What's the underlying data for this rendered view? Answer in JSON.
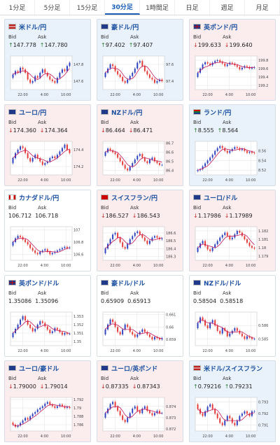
{
  "tabs": [
    {
      "label": "1分足",
      "active": false
    },
    {
      "label": "5分足",
      "active": false
    },
    {
      "label": "15分足",
      "active": false
    },
    {
      "label": "30分足",
      "active": true
    },
    {
      "label": "1時間足",
      "active": false
    },
    {
      "label": "日足",
      "active": false
    },
    {
      "label": "週足",
      "active": false
    },
    {
      "label": "月足",
      "active": false
    }
  ],
  "labels": {
    "bid": "Bid",
    "ask": "Ask"
  },
  "colors": {
    "up_candle": "#2b3fbf",
    "down_candle": "#e53935",
    "ma_line": "#c2185b",
    "grid": "#e0e0e0"
  },
  "cards": [
    {
      "pair": "米ドル/円",
      "flag": "us",
      "trend": "up",
      "bid": "147.778",
      "ask": "147.780",
      "xticks": [
        "22:00",
        "4:00",
        "10:00"
      ],
      "yticks": [
        "147.8",
        "147.6"
      ],
      "chart_data": {
        "type": "candlestick",
        "series": [
          147.68,
          147.72,
          147.7,
          147.76,
          147.74,
          147.7,
          147.62,
          147.58,
          147.6,
          147.66,
          147.64,
          147.7,
          147.74,
          147.7,
          147.66,
          147.62,
          147.6,
          147.58,
          147.64,
          147.7,
          147.74,
          147.72,
          147.78,
          147.82
        ],
        "ylim": [
          147.5,
          147.9
        ]
      }
    },
    {
      "pair": "豪ドル/円",
      "flag": "au",
      "trend": "up",
      "bid": "97.402",
      "ask": "97.407",
      "xticks": [
        "22:00",
        "4:00",
        "10:00"
      ],
      "yticks": [
        "97.6",
        "97.4"
      ],
      "chart_data": {
        "type": "candlestick",
        "series": [
          97.5,
          97.55,
          97.6,
          97.58,
          97.52,
          97.48,
          97.45,
          97.4,
          97.38,
          97.42,
          97.46,
          97.5,
          97.55,
          97.62,
          97.64,
          97.58,
          97.52,
          97.48,
          97.44,
          97.42,
          97.38,
          97.4,
          97.42,
          97.4
        ],
        "ylim": [
          97.3,
          97.7
        ]
      }
    },
    {
      "pair": "英ポンド/円",
      "flag": "gb",
      "trend": "down",
      "bid": "199.633",
      "ask": "199.640",
      "xticks": [
        "22:00",
        "4:00",
        "10:00"
      ],
      "yticks": [
        "199.8",
        "199.6",
        "199.4",
        "199.2"
      ],
      "chart_data": {
        "type": "candlestick",
        "series": [
          199.5,
          199.6,
          199.7,
          199.75,
          199.72,
          199.68,
          199.74,
          199.78,
          199.8,
          199.76,
          199.72,
          199.66,
          199.7,
          199.74,
          199.72,
          199.68,
          199.64,
          199.58,
          199.62,
          199.66,
          199.64,
          199.6,
          199.62,
          199.63
        ],
        "ylim": [
          199.1,
          199.9
        ]
      }
    },
    {
      "pair": "ユーロ/円",
      "flag": "eu",
      "trend": "down",
      "bid": "174.360",
      "ask": "174.364",
      "xticks": [
        "22:00",
        "4:00",
        "10:00"
      ],
      "yticks": [
        "174.4",
        "174.2"
      ],
      "chart_data": {
        "type": "candlestick",
        "series": [
          174.3,
          174.36,
          174.4,
          174.44,
          174.42,
          174.36,
          174.3,
          174.26,
          174.3,
          174.34,
          174.3,
          174.26,
          174.22,
          174.24,
          174.26,
          174.3,
          174.32,
          174.3,
          174.34,
          174.38,
          174.42,
          174.46,
          174.4,
          174.36
        ],
        "ylim": [
          174.1,
          174.5
        ]
      }
    },
    {
      "pair": "NZドル/円",
      "flag": "nz",
      "trend": "down",
      "bid": "86.464",
      "ask": "86.471",
      "xticks": [
        "22:00",
        "4:00",
        "10:00"
      ],
      "yticks": [
        "86.7",
        "86.6",
        "86.5",
        "86.4"
      ],
      "chart_data": {
        "type": "candlestick",
        "series": [
          86.6,
          86.64,
          86.62,
          86.6,
          86.58,
          86.54,
          86.5,
          86.46,
          86.42,
          86.4,
          86.44,
          86.48,
          86.52,
          86.56,
          86.58,
          86.54,
          86.5,
          86.48,
          86.52,
          86.54,
          86.5,
          86.48,
          86.46,
          86.46
        ],
        "ylim": [
          86.35,
          86.72
        ]
      }
    },
    {
      "pair": "ランド/円",
      "flag": "za",
      "trend": "up",
      "bid": "8.555",
      "ask": "8.564",
      "xticks": [
        "22:00",
        "4:00",
        "10:00"
      ],
      "yticks": [
        "8.56",
        "8.54",
        "8.52"
      ],
      "chart_data": {
        "type": "candlestick",
        "series": [
          8.52,
          8.522,
          8.528,
          8.534,
          8.54,
          8.546,
          8.552,
          8.56,
          8.566,
          8.57,
          8.566,
          8.56,
          8.556,
          8.56,
          8.564,
          8.568,
          8.566,
          8.562,
          8.564,
          8.56,
          8.556,
          8.558,
          8.556,
          8.555
        ],
        "ylim": [
          8.51,
          8.58
        ]
      }
    },
    {
      "pair": "カナダドル/円",
      "flag": "ca",
      "trend": "flat",
      "bid": "106.712",
      "ask": "106.718",
      "xticks": [
        "22:00",
        "4:00",
        "10:00"
      ],
      "yticks": [
        "107",
        "106.8",
        "106.6"
      ],
      "chart_data": {
        "type": "candlestick",
        "series": [
          106.8,
          106.86,
          106.9,
          106.88,
          106.84,
          106.8,
          106.76,
          106.7,
          106.66,
          106.62,
          106.6,
          106.64,
          106.66,
          106.68,
          106.64,
          106.6,
          106.62,
          106.64,
          106.66,
          106.68,
          106.7,
          106.72,
          106.7,
          106.71
        ],
        "ylim": [
          106.5,
          107.05
        ]
      }
    },
    {
      "pair": "スイスフラン/円",
      "flag": "ch",
      "trend": "down",
      "bid": "186.527",
      "ask": "186.543",
      "xticks": [
        "22:00",
        "4:00",
        "10:00"
      ],
      "yticks": [
        "186.6",
        "186.5",
        "186.4",
        "186.3"
      ],
      "chart_data": {
        "type": "candlestick",
        "series": [
          186.4,
          186.46,
          186.52,
          186.58,
          186.6,
          186.54,
          186.48,
          186.42,
          186.4,
          186.46,
          186.52,
          186.56,
          186.6,
          186.62,
          186.58,
          186.54,
          186.5,
          186.46,
          186.5,
          186.54,
          186.56,
          186.54,
          186.52,
          186.53
        ],
        "ylim": [
          186.25,
          186.68
        ]
      }
    },
    {
      "pair": "ユーロ/ドル",
      "flag": "eu",
      "trend": "down",
      "bid": "1.17986",
      "ask": "1.17989",
      "xticks": [
        "22:00",
        "4:00",
        "10:00"
      ],
      "yticks": [
        "1.182",
        "1.181",
        "1.18",
        "1.179"
      ],
      "chart_data": {
        "type": "candlestick",
        "series": [
          1.18,
          1.1805,
          1.1808,
          1.1802,
          1.1798,
          1.1796,
          1.18,
          1.1804,
          1.1808,
          1.1812,
          1.1815,
          1.1818,
          1.1814,
          1.181,
          1.1812,
          1.1816,
          1.182,
          1.1818,
          1.1814,
          1.181,
          1.1806,
          1.1802,
          1.18,
          1.1799
        ],
        "ylim": [
          1.1785,
          1.1825
        ]
      }
    },
    {
      "pair": "英ポンド/ドル",
      "flag": "gb",
      "trend": "flat",
      "bid": "1.35086",
      "ask": "1.35096",
      "xticks": [
        "22:00",
        "4:00",
        "10:00"
      ],
      "yticks": [
        "1.353",
        "1.352",
        "1.351",
        "1.35"
      ],
      "chart_data": {
        "type": "candlestick",
        "series": [
          1.351,
          1.3515,
          1.352,
          1.3526,
          1.353,
          1.3525,
          1.352,
          1.3516,
          1.3512,
          1.3515,
          1.352,
          1.3524,
          1.3522,
          1.3518,
          1.3514,
          1.351,
          1.3512,
          1.3516,
          1.3514,
          1.3511,
          1.3508,
          1.351,
          1.3509,
          1.3509
        ],
        "ylim": [
          1.3495,
          1.3535
        ]
      }
    },
    {
      "pair": "豪ドル/ドル",
      "flag": "au",
      "trend": "flat",
      "bid": "0.65909",
      "ask": "0.65913",
      "xticks": [
        "22:00",
        "4:00",
        "10:00"
      ],
      "yticks": [
        "0.661",
        "0.66",
        "0.659"
      ],
      "chart_data": {
        "type": "candlestick",
        "series": [
          0.6598,
          0.6602,
          0.6606,
          0.6604,
          0.66,
          0.6596,
          0.6594,
          0.6598,
          0.6602,
          0.66,
          0.6596,
          0.6594,
          0.6592,
          0.6594,
          0.6596,
          0.6598,
          0.6596,
          0.6594,
          0.6592,
          0.659,
          0.6592,
          0.6591,
          0.659,
          0.6591
        ],
        "ylim": [
          0.6585,
          0.6612
        ]
      }
    },
    {
      "pair": "NZドル/ドル",
      "flag": "nz",
      "trend": "flat",
      "bid": "0.58504",
      "ask": "0.58518",
      "xticks": [
        "22:00",
        "4:00",
        "10:00"
      ],
      "yticks": [
        "0.586",
        "0.585"
      ],
      "chart_data": {
        "type": "candlestick",
        "series": [
          0.5862,
          0.5866,
          0.5864,
          0.586,
          0.5858,
          0.5862,
          0.5864,
          0.586,
          0.5856,
          0.5854,
          0.5858,
          0.5856,
          0.5852,
          0.5854,
          0.5856,
          0.5858,
          0.5856,
          0.5854,
          0.5852,
          0.585,
          0.5852,
          0.5851,
          0.585,
          0.585
        ],
        "ylim": [
          0.5845,
          0.587
        ]
      }
    },
    {
      "pair": "ユーロ/豪ドル",
      "flag": "eu",
      "trend": "down",
      "bid": "1.79000",
      "ask": "1.79014",
      "xticks": [
        "22:00",
        "4:00",
        "10:00"
      ],
      "yticks": [
        "1.792",
        "1.79",
        "1.788",
        "1.786"
      ],
      "chart_data": {
        "type": "candlestick",
        "series": [
          1.786,
          1.7855,
          1.7858,
          1.7864,
          1.787,
          1.7876,
          1.7872,
          1.788,
          1.7886,
          1.789,
          1.7896,
          1.79,
          1.7904,
          1.791,
          1.7914,
          1.7908,
          1.7904,
          1.79,
          1.7904,
          1.7908,
          1.7904,
          1.79,
          1.7902,
          1.79
        ],
        "ylim": [
          1.7845,
          1.7925
        ]
      }
    },
    {
      "pair": "ユーロ/英ポンド",
      "flag": "eu",
      "trend": "down",
      "bid": "0.87335",
      "ask": "0.87343",
      "xticks": [
        "22:00",
        "4:00",
        "10:00"
      ],
      "yticks": [
        "0.874",
        "0.873",
        "0.872"
      ],
      "chart_data": {
        "type": "candlestick",
        "series": [
          0.8734,
          0.8738,
          0.8742,
          0.8744,
          0.874,
          0.8736,
          0.8732,
          0.8728,
          0.8726,
          0.873,
          0.8734,
          0.8738,
          0.874,
          0.8736,
          0.8734,
          0.8738,
          0.874,
          0.8736,
          0.8734,
          0.8732,
          0.8734,
          0.8736,
          0.8734,
          0.8734
        ],
        "ylim": [
          0.8718,
          0.8748
        ]
      }
    },
    {
      "pair": "米ドル/スイスフラン",
      "flag": "us",
      "trend": "up",
      "bid": "0.79216",
      "ask": "0.79231",
      "xticks": [
        "22:00",
        "4:00",
        "10:00"
      ],
      "yticks": [
        "0.793",
        "0.792",
        "0.791"
      ],
      "chart_data": {
        "type": "candlestick",
        "series": [
          0.7924,
          0.792,
          0.7918,
          0.7922,
          0.7926,
          0.7928,
          0.7924,
          0.792,
          0.7916,
          0.7912,
          0.791,
          0.7914,
          0.7918,
          0.7916,
          0.7912,
          0.791,
          0.7914,
          0.7918,
          0.792,
          0.7922,
          0.792,
          0.7918,
          0.7922,
          0.7922
        ],
        "ylim": [
          0.7905,
          0.7934
        ]
      }
    }
  ]
}
